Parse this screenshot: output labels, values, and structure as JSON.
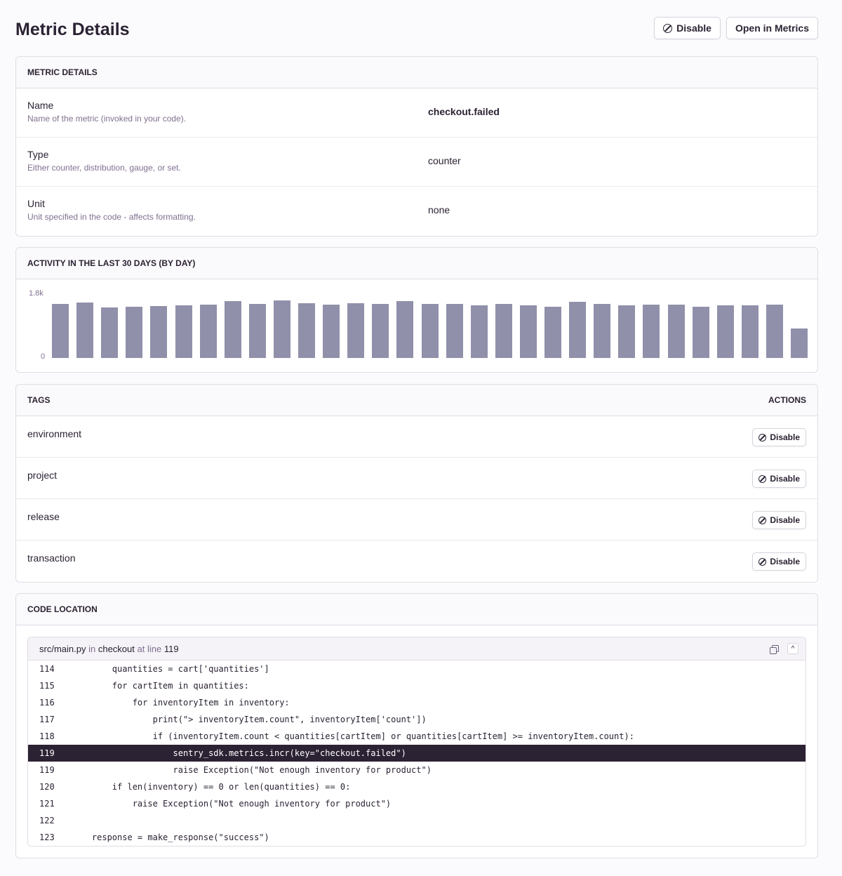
{
  "header": {
    "title": "Metric Details",
    "disable_label": "Disable",
    "open_label": "Open in Metrics"
  },
  "details": {
    "title": "Metric Details",
    "rows": [
      {
        "label": "Name",
        "desc": "Name of the metric (invoked in your code).",
        "value": "checkout.failed"
      },
      {
        "label": "Type",
        "desc": "Either counter, distribution, gauge, or set.",
        "value": "counter"
      },
      {
        "label": "Unit",
        "desc": "Unit specified in the code - affects formatting.",
        "value": "none"
      }
    ]
  },
  "activity": {
    "title": "Activity in the last 30 days (by day)"
  },
  "chart_data": {
    "type": "bar",
    "ylim": [
      0,
      1800
    ],
    "yticks": [
      "0",
      "1.8k"
    ],
    "color": "#9090aa",
    "values": [
      1550,
      1590,
      1450,
      1470,
      1490,
      1500,
      1530,
      1620,
      1550,
      1650,
      1570,
      1530,
      1570,
      1540,
      1630,
      1540,
      1540,
      1510,
      1550,
      1500,
      1460,
      1610,
      1550,
      1500,
      1530,
      1520,
      1460,
      1500,
      1510,
      1530,
      850
    ]
  },
  "tags": {
    "title": "Tags",
    "actions_label": "Actions",
    "disable_label": "Disable",
    "items": [
      "environment",
      "project",
      "release",
      "transaction"
    ]
  },
  "code": {
    "title": "Code Location",
    "file": "src/main.py",
    "in": "in",
    "function": "checkout",
    "at": "at line",
    "line": "119",
    "lines": [
      {
        "n": "114",
        "code": "        quantities = cart['quantities']"
      },
      {
        "n": "115",
        "code": "        for cartItem in quantities:"
      },
      {
        "n": "116",
        "code": "            for inventoryItem in inventory:"
      },
      {
        "n": "117",
        "code": "                print(\"> inventoryItem.count\", inventoryItem['count'])"
      },
      {
        "n": "118",
        "code": "                if (inventoryItem.count < quantities[cartItem] or quantities[cartItem] >= inventoryItem.count):"
      },
      {
        "n": "119",
        "code": "                    sentry_sdk.metrics.incr(key=\"checkout.failed\")",
        "hl": true
      },
      {
        "n": "119",
        "code": "                    raise Exception(\"Not enough inventory for product\")"
      },
      {
        "n": "120",
        "code": "        if len(inventory) == 0 or len(quantities) == 0:"
      },
      {
        "n": "121",
        "code": "            raise Exception(\"Not enough inventory for product\")"
      },
      {
        "n": "122",
        "code": ""
      },
      {
        "n": "123",
        "code": "    response = make_response(\"success\")"
      }
    ]
  }
}
